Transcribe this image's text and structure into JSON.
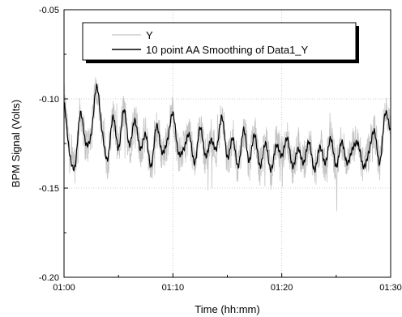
{
  "chart_data": {
    "type": "line",
    "title": "",
    "xlabel": "Time (hh:mm)",
    "ylabel": "BPM Signal (Volts)",
    "x_unit": "minutes after 01:00",
    "xlim": [
      0,
      30
    ],
    "ylim": [
      -0.2,
      -0.05
    ],
    "x_ticks": [
      0,
      10,
      20,
      30
    ],
    "x_tick_labels": [
      "01:00",
      "01:10",
      "01:20",
      "01:30"
    ],
    "y_ticks": [
      -0.2,
      -0.15,
      -0.1,
      -0.05
    ],
    "y_tick_labels": [
      "-0.20",
      "-0.15",
      "-0.10",
      "-0.05"
    ],
    "grid": true,
    "legend_position": "top-right",
    "series": [
      {
        "name": "Y",
        "color": "#c4c4c4",
        "style": "raw noisy trace around the smoothed curve, amplitude about ±0.015 V, spikes down to about -0.16 V"
      },
      {
        "name": "10 point AA Smoothing of Data1_Y",
        "color": "#000000",
        "x": [
          0.0,
          0.5,
          1.0,
          1.5,
          2.0,
          2.5,
          3.0,
          3.5,
          4.0,
          4.5,
          5.0,
          5.5,
          6.0,
          6.5,
          7.0,
          7.5,
          8.0,
          8.5,
          9.0,
          9.5,
          10.0,
          10.5,
          11.0,
          11.5,
          12.0,
          12.5,
          13.0,
          13.5,
          14.0,
          14.5,
          15.0,
          15.5,
          16.0,
          16.5,
          17.0,
          17.5,
          18.0,
          18.5,
          19.0,
          19.5,
          20.0,
          20.5,
          21.0,
          21.5,
          22.0,
          22.5,
          23.0,
          23.5,
          24.0,
          24.5,
          25.0,
          25.5,
          26.0,
          26.5,
          27.0,
          27.5,
          28.0,
          28.5,
          29.0,
          29.5,
          30.0
        ],
        "y": [
          -0.102,
          -0.13,
          -0.138,
          -0.108,
          -0.125,
          -0.12,
          -0.093,
          -0.118,
          -0.134,
          -0.11,
          -0.128,
          -0.106,
          -0.126,
          -0.112,
          -0.128,
          -0.12,
          -0.138,
          -0.115,
          -0.13,
          -0.123,
          -0.108,
          -0.13,
          -0.128,
          -0.12,
          -0.136,
          -0.116,
          -0.132,
          -0.123,
          -0.128,
          -0.11,
          -0.133,
          -0.122,
          -0.138,
          -0.117,
          -0.135,
          -0.12,
          -0.138,
          -0.125,
          -0.14,
          -0.126,
          -0.132,
          -0.122,
          -0.138,
          -0.128,
          -0.136,
          -0.124,
          -0.14,
          -0.127,
          -0.136,
          -0.122,
          -0.138,
          -0.124,
          -0.136,
          -0.128,
          -0.125,
          -0.138,
          -0.13,
          -0.118,
          -0.136,
          -0.108,
          -0.118
        ]
      }
    ]
  }
}
